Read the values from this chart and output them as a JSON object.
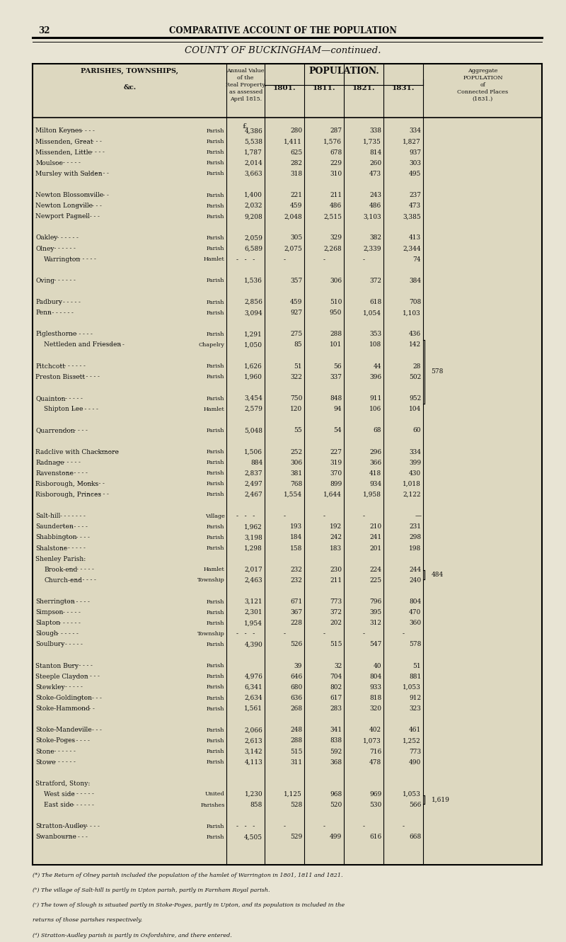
{
  "page_num": "32",
  "header_title": "COMPARATIVE ACCOUNT OF THE POPULATION",
  "county_title": "COUNTY OF BUCKINGHAM—continued.",
  "pop_header": "POPULATION.",
  "bg_color": "#e8e4d4",
  "rows": [
    {
      "name": "Milton Keynes",
      "indent": false,
      "type": "Parish",
      "val": "4,386",
      "p1801": "280",
      "p1811": "287",
      "p1821": "338",
      "p1831": "334",
      "agg": "",
      "spacer_before": false
    },
    {
      "name": "Missenden, Great",
      "indent": false,
      "type": "Parish",
      "val": "5,538",
      "p1801": "1,411",
      "p1811": "1,576",
      "p1821": "1,735",
      "p1831": "1,827",
      "agg": "",
      "spacer_before": false
    },
    {
      "name": "Missenden, Little",
      "indent": false,
      "type": "Parish",
      "val": "1,787",
      "p1801": "625",
      "p1811": "678",
      "p1821": "814",
      "p1831": "937",
      "agg": "",
      "spacer_before": false
    },
    {
      "name": "Moulsoe",
      "indent": false,
      "type": "Parish",
      "val": "2,014",
      "p1801": "282",
      "p1811": "229",
      "p1821": "260",
      "p1831": "303",
      "agg": "",
      "spacer_before": false
    },
    {
      "name": "Mursley with Salden",
      "indent": false,
      "type": "Parish",
      "val": "3,663",
      "p1801": "318",
      "p1811": "310",
      "p1821": "473",
      "p1831": "495",
      "agg": "",
      "spacer_before": false
    },
    {
      "name": "",
      "indent": false,
      "type": "",
      "val": "",
      "p1801": "",
      "p1811": "",
      "p1821": "",
      "p1831": "",
      "agg": "",
      "spacer_before": false
    },
    {
      "name": "Newton Blossomville",
      "indent": false,
      "type": "Parish",
      "val": "1,400",
      "p1801": "221",
      "p1811": "211",
      "p1821": "243",
      "p1831": "237",
      "agg": "",
      "spacer_before": false
    },
    {
      "name": "Newton Longville",
      "indent": false,
      "type": "Parish",
      "val": "2,032",
      "p1801": "459",
      "p1811": "486",
      "p1821": "486",
      "p1831": "473",
      "agg": "",
      "spacer_before": false
    },
    {
      "name": "Newport Pagnell",
      "indent": false,
      "type": "Parish",
      "val": "9,208",
      "p1801": "2,048",
      "p1811": "2,515",
      "p1821": "3,103",
      "p1831": "3,385",
      "agg": "",
      "spacer_before": false
    },
    {
      "name": "",
      "indent": false,
      "type": "",
      "val": "",
      "p1801": "",
      "p1811": "",
      "p1821": "",
      "p1831": "",
      "agg": "",
      "spacer_before": false
    },
    {
      "name": "Oakley",
      "indent": false,
      "type": "Parish",
      "val": "2,059",
      "p1801": "305",
      "p1811": "329",
      "p1821": "382",
      "p1831": "413",
      "agg": "",
      "spacer_before": false
    },
    {
      "name": "Olney",
      "indent": false,
      "type": "Parish",
      "val": "6,589",
      "p1801": "2,075",
      "p1811": "2,268",
      "p1821": "2,339",
      "p1831": "2,344",
      "agg": "",
      "spacer_before": false,
      "footnote": "a"
    },
    {
      "name": "Warrington",
      "indent": true,
      "type": "Hamlet",
      "val": "-",
      "p1801": "-",
      "p1811": "-",
      "p1821": "-",
      "p1831": "74",
      "agg": "",
      "spacer_before": false
    },
    {
      "name": "",
      "indent": false,
      "type": "",
      "val": "",
      "p1801": "",
      "p1811": "",
      "p1821": "",
      "p1831": "",
      "agg": "",
      "spacer_before": false
    },
    {
      "name": "Oving",
      "indent": false,
      "type": "Parish",
      "val": "1,536",
      "p1801": "357",
      "p1811": "306",
      "p1821": "372",
      "p1831": "384",
      "agg": "",
      "spacer_before": false
    },
    {
      "name": "",
      "indent": false,
      "type": "",
      "val": "",
      "p1801": "",
      "p1811": "",
      "p1821": "",
      "p1831": "",
      "agg": "",
      "spacer_before": false
    },
    {
      "name": "Padbury",
      "indent": false,
      "type": "Parish",
      "val": "2,856",
      "p1801": "459",
      "p1811": "510",
      "p1821": "618",
      "p1831": "708",
      "agg": "",
      "spacer_before": false
    },
    {
      "name": "Penn",
      "indent": false,
      "type": "Parish",
      "val": "3,094",
      "p1801": "927",
      "p1811": "950",
      "p1821": "1,054",
      "p1831": "1,103",
      "agg": "",
      "spacer_before": false
    },
    {
      "name": "",
      "indent": false,
      "type": "",
      "val": "",
      "p1801": "",
      "p1811": "",
      "p1821": "",
      "p1831": "",
      "agg": "",
      "spacer_before": false
    },
    {
      "name": "Piglesthorne",
      "indent": false,
      "type": "Parish",
      "val": "1,291",
      "p1801": "275",
      "p1811": "288",
      "p1821": "353",
      "p1831": "436",
      "agg": "578",
      "bracket_start": true,
      "spacer_before": false
    },
    {
      "name": "Nettleden and Friesden",
      "indent": true,
      "type": "Chapelry",
      "val": "1,050",
      "p1801": "85",
      "p1811": "101",
      "p1821": "108",
      "p1831": "142",
      "agg": "",
      "bracket_end": true,
      "spacer_before": false
    },
    {
      "name": "",
      "indent": false,
      "type": "",
      "val": "",
      "p1801": "",
      "p1811": "",
      "p1821": "",
      "p1831": "",
      "agg": "",
      "spacer_before": false
    },
    {
      "name": "Pitchcott",
      "indent": false,
      "type": "Parish",
      "val": "1,626",
      "p1801": "51",
      "p1811": "56",
      "p1821": "44",
      "p1831": "28",
      "agg": "",
      "spacer_before": false
    },
    {
      "name": "Preston Bissett",
      "indent": false,
      "type": "Parish",
      "val": "1,960",
      "p1801": "322",
      "p1811": "337",
      "p1821": "396",
      "p1831": "502",
      "agg": "",
      "spacer_before": false
    },
    {
      "name": "",
      "indent": false,
      "type": "",
      "val": "",
      "p1801": "",
      "p1811": "",
      "p1821": "",
      "p1831": "",
      "agg": "",
      "spacer_before": false
    },
    {
      "name": "Quainton",
      "indent": false,
      "type": "Parish",
      "val": "3,454",
      "p1801": "750",
      "p1811": "848",
      "p1821": "911",
      "p1831": "952",
      "agg": "",
      "bracket_start": true,
      "spacer_before": false
    },
    {
      "name": "Shipton Lee",
      "indent": true,
      "type": "Hamlet",
      "val": "2,579",
      "p1801": "120",
      "p1811": "94",
      "p1821": "106",
      "p1831": "104",
      "agg": "",
      "bracket_end": true,
      "spacer_before": false
    },
    {
      "name": "",
      "indent": false,
      "type": "",
      "val": "",
      "p1801": "",
      "p1811": "",
      "p1821": "",
      "p1831": "",
      "agg": "",
      "spacer_before": false
    },
    {
      "name": "Quarrendon",
      "indent": false,
      "type": "Parish",
      "val": "5,048",
      "p1801": "55",
      "p1811": "54",
      "p1821": "68",
      "p1831": "60",
      "agg": "",
      "spacer_before": false
    },
    {
      "name": "",
      "indent": false,
      "type": "",
      "val": "",
      "p1801": "",
      "p1811": "",
      "p1821": "",
      "p1831": "",
      "agg": "",
      "spacer_before": false
    },
    {
      "name": "Radclive with Chackmore",
      "indent": false,
      "type": "Parish",
      "val": "1,506",
      "p1801": "252",
      "p1811": "227",
      "p1821": "296",
      "p1831": "334",
      "agg": "",
      "spacer_before": false
    },
    {
      "name": "Radnage",
      "indent": false,
      "type": "Parish",
      "val": "884",
      "p1801": "306",
      "p1811": "319",
      "p1821": "366",
      "p1831": "399",
      "agg": "",
      "spacer_before": false
    },
    {
      "name": "Ravenstone",
      "indent": false,
      "type": "Parish",
      "val": "2,837",
      "p1801": "381",
      "p1811": "370",
      "p1821": "418",
      "p1831": "430",
      "agg": "",
      "spacer_before": false
    },
    {
      "name": "Risborough, Monks",
      "indent": false,
      "type": "Parish",
      "val": "2,497",
      "p1801": "768",
      "p1811": "899",
      "p1821": "934",
      "p1831": "1,018",
      "agg": "",
      "spacer_before": false
    },
    {
      "name": "Risborough, Princes",
      "indent": false,
      "type": "Parish",
      "val": "2,467",
      "p1801": "1,554",
      "p1811": "1,644",
      "p1821": "1,958",
      "p1831": "2,122",
      "agg": "",
      "spacer_before": false
    },
    {
      "name": "",
      "indent": false,
      "type": "",
      "val": "",
      "p1801": "",
      "p1811": "",
      "p1821": "",
      "p1831": "",
      "agg": "",
      "spacer_before": false
    },
    {
      "name": "Salt-hill",
      "indent": false,
      "type": "Village",
      "val": "-",
      "p1801": "-",
      "p1811": "-",
      "p1821": "-",
      "p1831": "—",
      "agg": "",
      "spacer_before": false,
      "footnote": "b"
    },
    {
      "name": "Saunderton",
      "indent": false,
      "type": "Parish",
      "val": "1,962",
      "p1801": "193",
      "p1811": "192",
      "p1821": "210",
      "p1831": "231",
      "agg": "",
      "spacer_before": false
    },
    {
      "name": "Shabbington",
      "indent": false,
      "type": "Parish",
      "val": "3,198",
      "p1801": "184",
      "p1811": "242",
      "p1821": "241",
      "p1831": "298",
      "agg": "",
      "spacer_before": false
    },
    {
      "name": "Shalstone",
      "indent": false,
      "type": "Parish",
      "val": "1,298",
      "p1801": "158",
      "p1811": "183",
      "p1821": "201",
      "p1831": "198",
      "agg": "",
      "spacer_before": false
    },
    {
      "name": "Shenley Parish:",
      "indent": false,
      "type": "",
      "val": "",
      "p1801": "",
      "p1811": "",
      "p1821": "",
      "p1831": "",
      "agg": "",
      "spacer_before": false
    },
    {
      "name": "Brook-end",
      "indent": true,
      "type": "Hamlet",
      "val": "2,017",
      "p1801": "232",
      "p1811": "230",
      "p1821": "224",
      "p1831": "244",
      "agg": "484",
      "bracket_start": true,
      "spacer_before": false
    },
    {
      "name": "Church-end",
      "indent": true,
      "type": "Township",
      "val": "2,463",
      "p1801": "232",
      "p1811": "211",
      "p1821": "225",
      "p1831": "240",
      "agg": "",
      "bracket_end": true,
      "spacer_before": false
    },
    {
      "name": "",
      "indent": false,
      "type": "",
      "val": "",
      "p1801": "",
      "p1811": "",
      "p1821": "",
      "p1831": "",
      "agg": "",
      "spacer_before": false
    },
    {
      "name": "Sherrington",
      "indent": false,
      "type": "Parish",
      "val": "3,121",
      "p1801": "671",
      "p1811": "773",
      "p1821": "796",
      "p1831": "804",
      "agg": "",
      "spacer_before": false
    },
    {
      "name": "Simpson",
      "indent": false,
      "type": "Parish",
      "val": "2,301",
      "p1801": "367",
      "p1811": "372",
      "p1821": "395",
      "p1831": "470",
      "agg": "",
      "spacer_before": false
    },
    {
      "name": "Slapton",
      "indent": false,
      "type": "Parish",
      "val": "1,954",
      "p1801": "228",
      "p1811": "202",
      "p1821": "312",
      "p1831": "360",
      "agg": "",
      "spacer_before": false
    },
    {
      "name": "Slough",
      "indent": false,
      "type": "Township",
      "val": "-",
      "p1801": "-",
      "p1811": "-",
      "p1821": "-",
      "p1831": "-",
      "agg": "",
      "spacer_before": false,
      "footnote": "c"
    },
    {
      "name": "Soulbury",
      "indent": false,
      "type": "Parish",
      "val": "4,390",
      "p1801": "526",
      "p1811": "515",
      "p1821": "547",
      "p1831": "578",
      "agg": "",
      "spacer_before": false
    },
    {
      "name": "",
      "indent": false,
      "type": "",
      "val": "",
      "p1801": "",
      "p1811": "",
      "p1821": "",
      "p1831": "",
      "agg": "",
      "spacer_before": false
    },
    {
      "name": "Stanton Bury",
      "indent": false,
      "type": "Parish",
      "val": "",
      "p1801": "39",
      "p1811": "32",
      "p1821": "40",
      "p1831": "51",
      "agg": "",
      "spacer_before": false
    },
    {
      "name": "Steeple Claydon",
      "indent": false,
      "type": "Parish",
      "val": "4,976",
      "p1801": "646",
      "p1811": "704",
      "p1821": "804",
      "p1831": "881",
      "agg": "",
      "spacer_before": false
    },
    {
      "name": "Stewkley",
      "indent": false,
      "type": "Parish",
      "val": "6,341",
      "p1801": "680",
      "p1811": "802",
      "p1821": "933",
      "p1831": "1,053",
      "agg": "",
      "spacer_before": false
    },
    {
      "name": "Stoke-Goldington",
      "indent": false,
      "type": "Parish",
      "val": "2,634",
      "p1801": "636",
      "p1811": "617",
      "p1821": "818",
      "p1831": "912",
      "agg": "",
      "spacer_before": false
    },
    {
      "name": "Stoke-Hammond",
      "indent": false,
      "type": "Parish",
      "val": "1,561",
      "p1801": "268",
      "p1811": "283",
      "p1821": "320",
      "p1831": "323",
      "agg": "",
      "spacer_before": false
    },
    {
      "name": "",
      "indent": false,
      "type": "",
      "val": "",
      "p1801": "",
      "p1811": "",
      "p1821": "",
      "p1831": "",
      "agg": "",
      "spacer_before": false
    },
    {
      "name": "Stoke-Mandeville",
      "indent": false,
      "type": "Parish",
      "val": "2,066",
      "p1801": "248",
      "p1811": "341",
      "p1821": "402",
      "p1831": "461",
      "agg": "",
      "spacer_before": false
    },
    {
      "name": "Stoke-Poges",
      "indent": false,
      "type": "Parish",
      "val": "2,613",
      "p1801": "288",
      "p1811": "838",
      "p1821": "1,073",
      "p1831": "1,252",
      "agg": "",
      "spacer_before": false
    },
    {
      "name": "Stone",
      "indent": false,
      "type": "Parish",
      "val": "3,142",
      "p1801": "515",
      "p1811": "592",
      "p1821": "716",
      "p1831": "773",
      "agg": "",
      "spacer_before": false
    },
    {
      "name": "Stowe",
      "indent": false,
      "type": "Parish",
      "val": "4,113",
      "p1801": "311",
      "p1811": "368",
      "p1821": "478",
      "p1831": "490",
      "agg": "",
      "spacer_before": false
    },
    {
      "name": "",
      "indent": false,
      "type": "",
      "val": "",
      "p1801": "",
      "p1811": "",
      "p1821": "",
      "p1831": "",
      "agg": "",
      "spacer_before": false
    },
    {
      "name": "Stratford, Stony:",
      "indent": false,
      "type": "",
      "val": "",
      "p1801": "",
      "p1811": "",
      "p1821": "",
      "p1831": "",
      "agg": "",
      "spacer_before": false
    },
    {
      "name": "West side",
      "indent": true,
      "type": "United",
      "val": "1,230",
      "p1801": "1,125",
      "p1811": "968",
      "p1821": "969",
      "p1831": "1,053",
      "agg": "1,619",
      "bracket_start": true,
      "spacer_before": false
    },
    {
      "name": "East side",
      "indent": true,
      "type": "Parishes",
      "val": "858",
      "p1801": "528",
      "p1811": "520",
      "p1821": "530",
      "p1831": "566",
      "agg": "",
      "bracket_end": true,
      "spacer_before": false
    },
    {
      "name": "",
      "indent": false,
      "type": "",
      "val": "",
      "p1801": "",
      "p1811": "",
      "p1821": "",
      "p1831": "",
      "agg": "",
      "spacer_before": false
    },
    {
      "name": "Stratton-Audley",
      "indent": false,
      "type": "Parish",
      "val": "-",
      "p1801": "-",
      "p1811": "-",
      "p1821": "-",
      "p1831": "-",
      "agg": "",
      "spacer_before": false,
      "footnote": "d"
    },
    {
      "name": "Swanbourne",
      "indent": false,
      "type": "Parish",
      "val": "4,505",
      "p1801": "529",
      "p1811": "499",
      "p1821": "616",
      "p1831": "668",
      "agg": "",
      "spacer_before": false
    }
  ],
  "footnotes": [
    "(*) The Return of Olney parish included the population of the hamlet of Warrington in 1801, 1811 and 1821.",
    "(ᵇ) The village of Salt-hill is partly in Upton parish, partly in Farnham Royal parish.",
    "(ᶜ) The town of Slough is situated partly in Stoke-Poges, partly in Upton, and its population is included in the",
    "returns of those parishes respectively.",
    "(ᵈ) Stratton-Audley parish is partly in Oxfordshire, and there entered."
  ]
}
